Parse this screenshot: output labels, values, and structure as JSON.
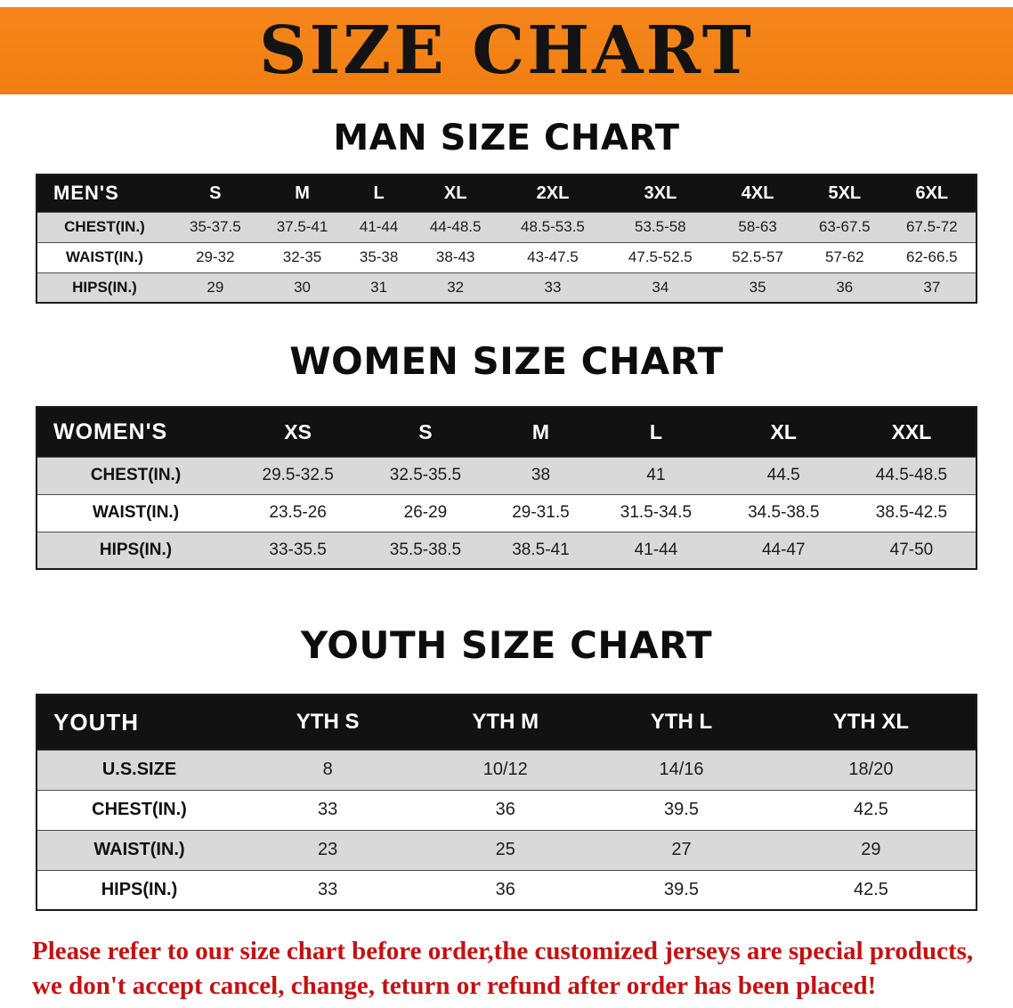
{
  "banner": {
    "title": "SIZE CHART"
  },
  "colors": {
    "banner_bg": "#f6861c",
    "header_bg": "#121212",
    "row_alt": "#d9d9d9",
    "disclaimer": "#c41111"
  },
  "tables": {
    "men": {
      "heading": "MAN SIZE CHART",
      "header": [
        "MEN'S",
        "S",
        "M",
        "L",
        "XL",
        "2XL",
        "3XL",
        "4XL",
        "5XL",
        "6XL"
      ],
      "rows": [
        {
          "label": "CHEST(IN.)",
          "values": [
            "35-37.5",
            "37.5-41",
            "41-44",
            "44-48.5",
            "48.5-53.5",
            "53.5-58",
            "58-63",
            "63-67.5",
            "67.5-72"
          ]
        },
        {
          "label": "WAIST(IN.)",
          "values": [
            "29-32",
            "32-35",
            "35-38",
            "38-43",
            "43-47.5",
            "47.5-52.5",
            "52.5-57",
            "57-62",
            "62-66.5"
          ]
        },
        {
          "label": "HIPS(IN.)",
          "values": [
            "29",
            "30",
            "31",
            "32",
            "33",
            "34",
            "35",
            "36",
            "37"
          ]
        }
      ]
    },
    "women": {
      "heading": "WOMEN SIZE CHART",
      "header": [
        "WOMEN'S",
        "XS",
        "S",
        "M",
        "L",
        "XL",
        "XXL"
      ],
      "rows": [
        {
          "label": "CHEST(IN.)",
          "values": [
            "29.5-32.5",
            "32.5-35.5",
            "38",
            "41",
            "44.5",
            "44.5-48.5"
          ]
        },
        {
          "label": "WAIST(IN.)",
          "values": [
            "23.5-26",
            "26-29",
            "29-31.5",
            "31.5-34.5",
            "34.5-38.5",
            "38.5-42.5"
          ]
        },
        {
          "label": "HIPS(IN.)",
          "values": [
            "33-35.5",
            "35.5-38.5",
            "38.5-41",
            "41-44",
            "44-47",
            "47-50"
          ]
        }
      ]
    },
    "youth": {
      "heading": "YOUTH SIZE CHART",
      "header": [
        "YOUTH",
        "YTH S",
        "YTH M",
        "YTH L",
        "YTH XL"
      ],
      "rows": [
        {
          "label": "U.S.SIZE",
          "values": [
            "8",
            "10/12",
            "14/16",
            "18/20"
          ]
        },
        {
          "label": "CHEST(IN.)",
          "values": [
            "33",
            "36",
            "39.5",
            "42.5"
          ]
        },
        {
          "label": "WAIST(IN.)",
          "values": [
            "23",
            "25",
            "27",
            "29"
          ]
        },
        {
          "label": "HIPS(IN.)",
          "values": [
            "33",
            "36",
            "39.5",
            "42.5"
          ]
        }
      ]
    }
  },
  "disclaimer": {
    "line1": "Please refer to our size chart before order,the customized jerseys are special products,",
    "line2": "we don't accept cancel, change, teturn or refund after order has been placed!"
  }
}
